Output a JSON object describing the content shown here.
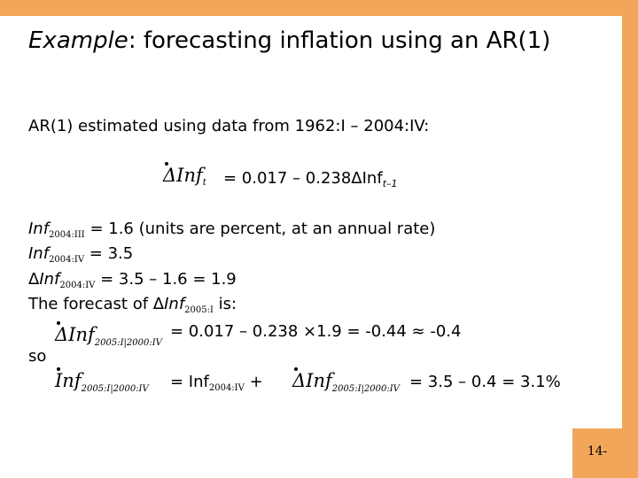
{
  "slide": {
    "title_italic": "Example",
    "title_rest": ":  forecasting inflation using an AR(1)",
    "intro": "AR(1) estimated using data from 1962:I – 2004:IV:",
    "eq_lhs": "ΔInf",
    "eq_lhs_sub": "t",
    "eq_rhs": "= 0.017 – 0.238ΔInf",
    "eq_rhs_sub": "t–1",
    "line1_var": "Inf",
    "line1_sub": "2004:III",
    "line1_text": " = 1.6 (units are percent, at an annual rate)",
    "line2_var": "Inf",
    "line2_sub": "2004:IV",
    "line2_text": " = 3.5",
    "line3_delta": "Δ",
    "line3_var": "Inf",
    "line3_sub": "2004:IV",
    "line3_text": " = 3.5 – 1.6 = 1.9",
    "line4_pre": "The forecast of Δ",
    "line4_var": "Inf",
    "line4_sub": "2005:I",
    "line4_post": " is:",
    "forecast_lhs": "ΔInf",
    "forecast_lhs_sub": "2005:I|2000:IV",
    "forecast_rhs": "= 0.017 – 0.238 ×1.9 = -0.44 ≈ -0.4",
    "so_label": "so",
    "level_lhs": "Inf",
    "level_lhs_sub": "2005:I|2000:IV",
    "level_mid_pre": "= Inf",
    "level_mid_sub": "2004:IV",
    "level_mid_plus": " +",
    "level_delta": "ΔInf",
    "level_delta_sub": "2005:I|2000:IV",
    "level_rhs": "= 3.5 – 0.4 = 3.1%",
    "page_number": "14-"
  },
  "colors": {
    "accent": "#f2a65a"
  }
}
